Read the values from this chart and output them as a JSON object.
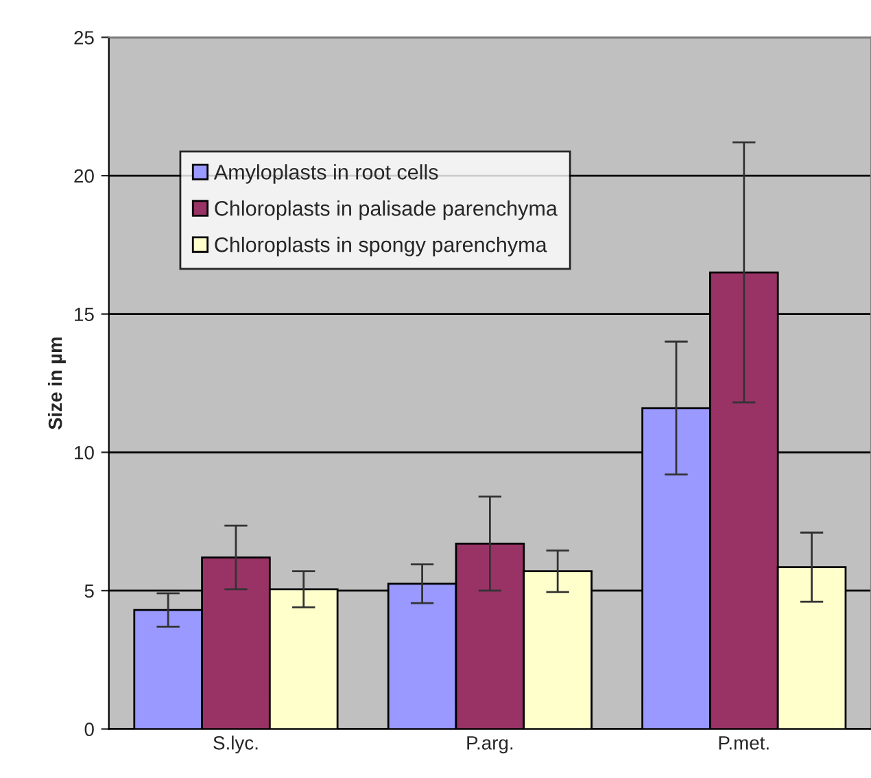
{
  "chart_data": {
    "type": "bar",
    "ylabel": "Size in µm",
    "categories": [
      "S.lyc.",
      "P.arg.",
      "P.met."
    ],
    "series": [
      {
        "name": "Amyloplasts in root cells",
        "color": "#9999ff",
        "values": [
          4.3,
          5.25,
          11.6
        ],
        "errors": [
          0.6,
          0.7,
          2.4
        ]
      },
      {
        "name": "Chloroplasts in palisade parenchyma",
        "color": "#993366",
        "values": [
          6.2,
          6.7,
          16.5
        ],
        "errors": [
          1.15,
          1.7,
          4.7
        ]
      },
      {
        "name": "Chloroplasts in spongy parenchyma",
        "color": "#ffffcc",
        "values": [
          5.05,
          5.7,
          5.85
        ],
        "errors": [
          0.65,
          0.75,
          1.25
        ]
      }
    ],
    "ylim": [
      0,
      25
    ],
    "yticks": [
      0,
      5,
      10,
      15,
      20,
      25
    ],
    "grid": "y",
    "legend": "top left"
  }
}
